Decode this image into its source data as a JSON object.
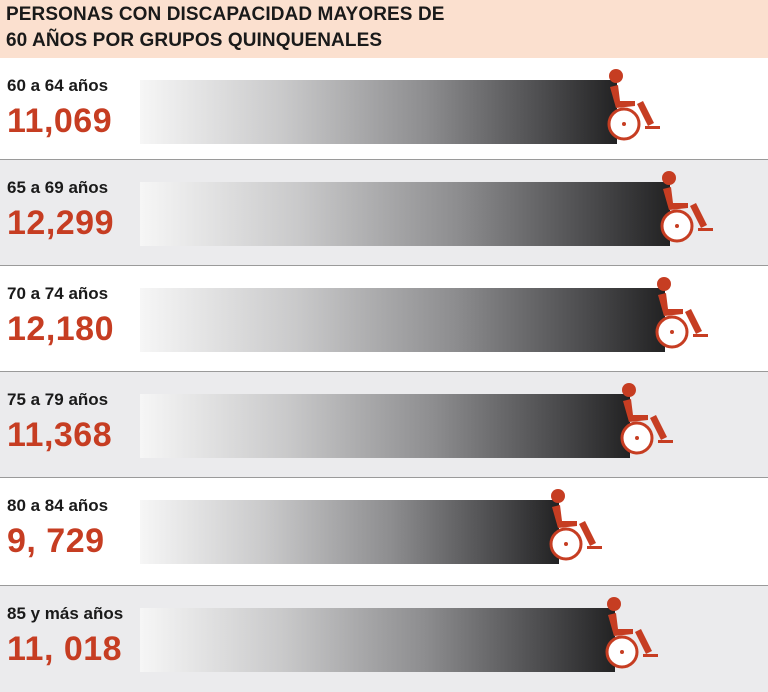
{
  "header": {
    "title_line1": "PERSONAS CON DISCAPACIDAD MAYORES DE",
    "title_line2": "60 AÑOS POR GRUPOS QUINQUENALES"
  },
  "chart_data": {
    "type": "bar",
    "orientation": "horizontal",
    "title": "PERSONAS CON DISCAPACIDAD MAYORES DE 60 AÑOS POR GRUPOS QUINQUENALES",
    "categories": [
      "60 a 64 años",
      "65 a 69 años",
      "70 a 74 años",
      "75 a 79 años",
      "80 a 84 años",
      "85 y más años"
    ],
    "values": [
      11069,
      12299,
      12180,
      11368,
      9729,
      11018
    ],
    "value_labels": [
      "11,069",
      "12,299",
      "12,180",
      "11,368",
      "9, 729",
      "11, 018"
    ],
    "xlabel": "",
    "ylabel": "",
    "grid": false,
    "legend": "none"
  },
  "colors": {
    "accent": "#c63d22",
    "header_bg": "#fbe0cf",
    "bar_dark": "#222223",
    "bar_light": "#f6f6f6"
  },
  "icons": [
    "wheelchair-icon"
  ]
}
